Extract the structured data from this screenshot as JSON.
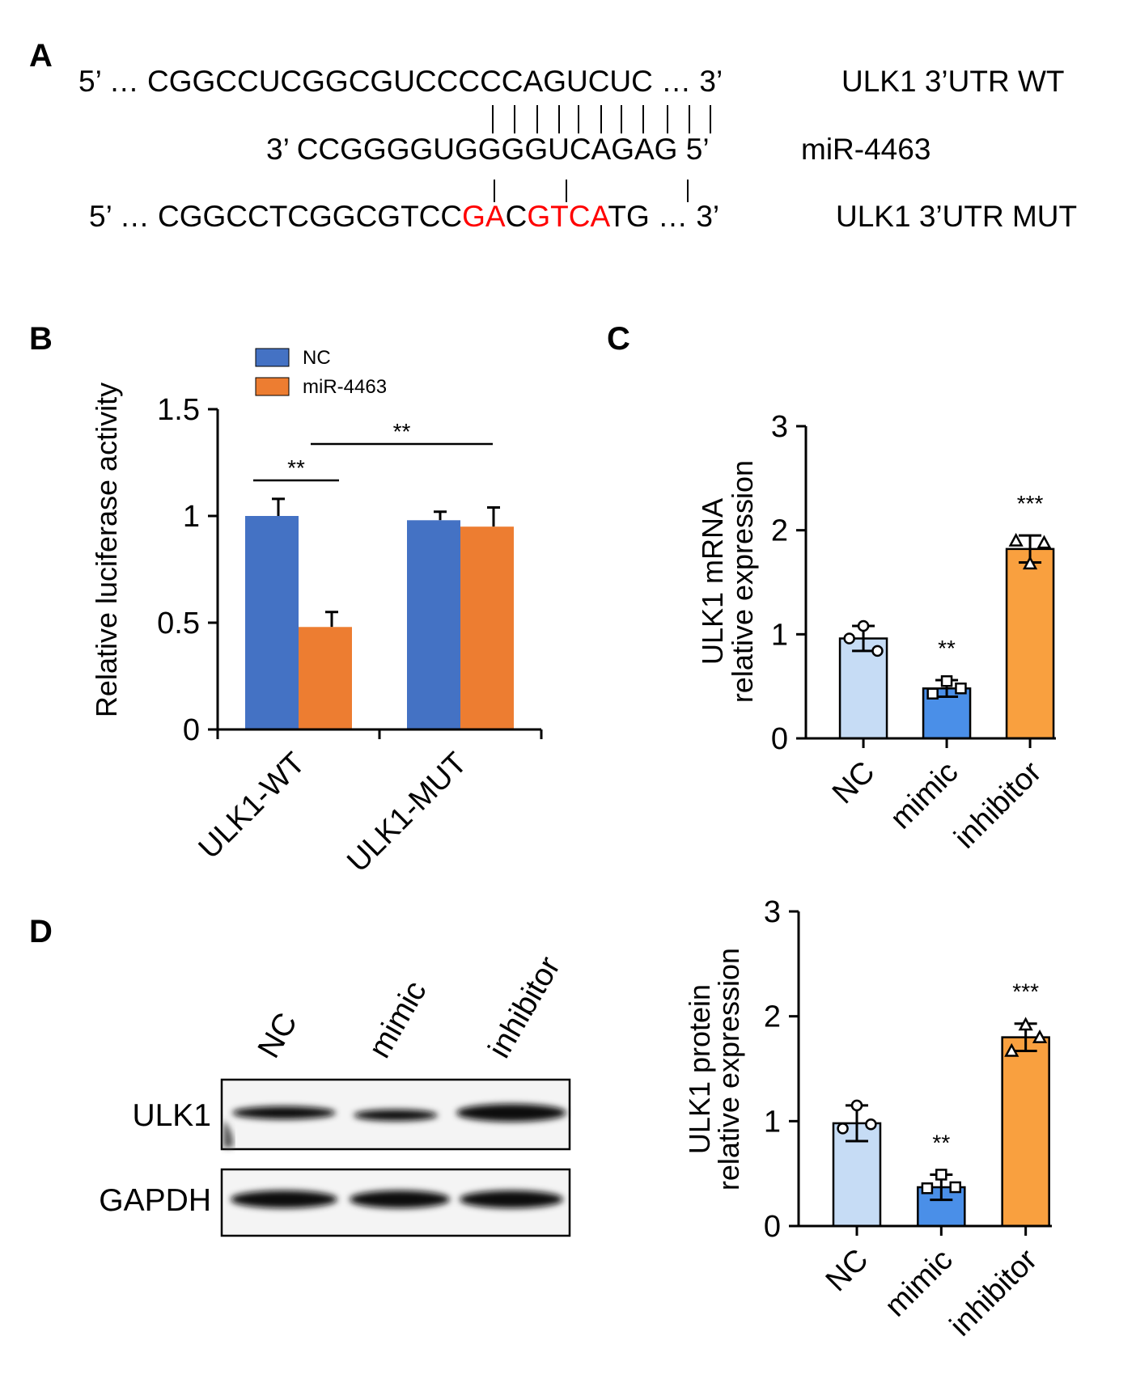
{
  "panel_labels": [
    "A",
    "B",
    "C",
    "D"
  ],
  "sequence_alignment": {
    "lines": [
      {
        "segments": [
          {
            "text": "5’ … CGGCCUCGGCGUCCCCCAGUCUC … 3’",
            "color": "#000000"
          }
        ],
        "label": "ULK1 3’UTR WT"
      },
      {
        "segments": [
          {
            "text": "3’ CCGGGGUGGGGUCAGAG 5’",
            "color": "#000000"
          }
        ],
        "label": "miR-4463"
      },
      {
        "segments": [
          {
            "text": "5’ … CGGCCTCGGCGTCC",
            "color": "#000000"
          },
          {
            "text": "GA",
            "color": "#ff0000"
          },
          {
            "text": "C",
            "color": "#000000"
          },
          {
            "text": "GTCA",
            "color": "#ff0000"
          },
          {
            "text": "TG … 3’",
            "color": "#000000"
          }
        ],
        "label": "ULK1 3’UTR MUT"
      }
    ]
  },
  "blot": {
    "lanes": [
      "NC",
      "mimic",
      "inhibitor"
    ],
    "rows": [
      "ULK1",
      "GAPDH"
    ]
  },
  "chart_data": [
    {
      "type": "bar",
      "ylabel": "Relative luciferase activity",
      "categories": [
        "ULK1-WT",
        "ULK1-MUT"
      ],
      "series": [
        {
          "name": "NC",
          "color": "#4472c4",
          "values": [
            1.0,
            0.98
          ],
          "errors": [
            0.08,
            0.04
          ]
        },
        {
          "name": "miR-4463",
          "color": "#ed7d31",
          "values": [
            0.48,
            0.95
          ],
          "errors": [
            0.07,
            0.09
          ]
        }
      ],
      "error_bars": "up",
      "ylim": [
        0,
        1.5
      ],
      "yticks": [
        0,
        0.5,
        1,
        1.5
      ],
      "annotations": [
        {
          "text": "**"
        },
        {
          "text": "**"
        }
      ]
    },
    {
      "type": "bar",
      "ylabel": [
        "ULK1 mRNA",
        "relative expression"
      ],
      "categories": [
        "NC",
        "mimic",
        "inhibitor"
      ],
      "values": [
        0.96,
        0.48,
        1.82
      ],
      "errors": [
        0.12,
        0.08,
        0.13
      ],
      "colors": [
        "#c6dcf5",
        "#4a8fe8",
        "#f9a03f"
      ],
      "points": [
        [
          1.08,
          0.96,
          0.84
        ],
        [
          0.55,
          0.43,
          0.48
        ],
        [
          1.68,
          1.9,
          1.88
        ]
      ],
      "markers": [
        "circle",
        "square",
        "triangle"
      ],
      "error_bars": "both",
      "ylim": [
        0,
        3
      ],
      "yticks": [
        0,
        1,
        2,
        3
      ],
      "annotations": [
        {
          "category": "mimic",
          "text": "**"
        },
        {
          "category": "inhibitor",
          "text": "***"
        }
      ]
    },
    {
      "type": "bar",
      "ylabel": [
        "ULK1 protein",
        "relative expression"
      ],
      "categories": [
        "NC",
        "mimic",
        "inhibitor"
      ],
      "values": [
        0.98,
        0.37,
        1.8
      ],
      "errors": [
        0.17,
        0.12,
        0.13
      ],
      "colors": [
        "#c6dcf5",
        "#4a8fe8",
        "#f9a03f"
      ],
      "points": [
        [
          1.15,
          0.93,
          0.97
        ],
        [
          0.49,
          0.36,
          0.37
        ],
        [
          1.92,
          1.67,
          1.8
        ]
      ],
      "markers": [
        "circle",
        "square",
        "triangle"
      ],
      "error_bars": "both",
      "ylim": [
        0,
        3
      ],
      "yticks": [
        0,
        1,
        2,
        3
      ],
      "annotations": [
        {
          "category": "mimic",
          "text": "**"
        },
        {
          "category": "inhibitor",
          "text": "***"
        }
      ]
    }
  ]
}
